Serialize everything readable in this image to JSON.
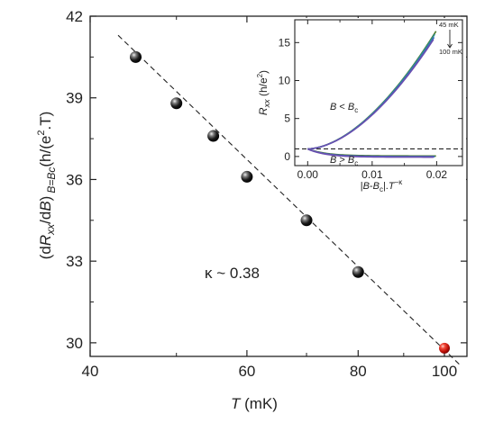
{
  "chart_data": [
    {
      "type": "scatter",
      "xlabel_var": "T",
      "xlabel_unit": " (mK)",
      "ylabel": "(dRxx/dB) B=Bc(h/(e².T)",
      "ylabel_parts": {
        "open": "(d",
        "r": "R",
        "xx": "xx",
        "mid": "/d",
        "b": "B",
        "close": ")",
        "sub": "B=Bc",
        "unit_a": "(h/(e",
        "sup": "2",
        "unit_b": ".T)"
      },
      "x_scale": "log",
      "xlim": [
        40,
        106
      ],
      "ylim": [
        29.5,
        42
      ],
      "x_ticks": [
        40,
        60,
        80,
        100
      ],
      "y_ticks": [
        30,
        33,
        36,
        39,
        42
      ],
      "points": [
        {
          "x": 45,
          "y": 40.5,
          "color": "#1a1a1a"
        },
        {
          "x": 50,
          "y": 38.8,
          "color": "#1a1a1a"
        },
        {
          "x": 55,
          "y": 37.6,
          "color": "#1a1a1a"
        },
        {
          "x": 60,
          "y": 36.1,
          "color": "#1a1a1a"
        },
        {
          "x": 70,
          "y": 34.5,
          "color": "#1a1a1a"
        },
        {
          "x": 80,
          "y": 32.6,
          "color": "#1a1a1a"
        },
        {
          "x": 100,
          "y": 29.8,
          "color": "#d4140f"
        }
      ],
      "fit_line": {
        "x": [
          43,
          104
        ],
        "y": [
          41.3,
          29.2
        ]
      },
      "annotation": "κ ~ 0.38"
    },
    {
      "type": "line",
      "xlabel": "|B-Bc|.T−κ",
      "xlabel_parts": {
        "a": "|",
        "b1": "B",
        "c": "-",
        "b2": "B",
        "sub": "c",
        "d": "|.",
        "t": "T",
        "sup": "−κ"
      },
      "ylabel": "Rxx (h/e²)",
      "ylabel_parts": {
        "r": "R",
        "sub": "xx",
        "a": " (h/e",
        "sup": "2",
        "b": ")"
      },
      "xlim": [
        -0.002,
        0.024
      ],
      "ylim": [
        -1.2,
        18
      ],
      "x_ticks": [
        0.0,
        0.01,
        0.02
      ],
      "y_ticks": [
        0,
        5,
        10,
        15
      ],
      "dashed_level": 1,
      "curves_above": [
        {
          "color": "#4a7a2a",
          "x_end": 0.0199,
          "y_end": 16.5
        },
        {
          "color": "#2f8f8c",
          "x_end": 0.0197,
          "y_end": 16.1
        },
        {
          "color": "#3a6abf",
          "x_end": 0.0196,
          "y_end": 15.7
        },
        {
          "color": "#6a4fb0",
          "x_end": 0.0195,
          "y_end": 15.4
        }
      ],
      "curves_below": [
        {
          "color": "#4a7a2a",
          "x_end": 0.0199,
          "y_end": 0.06
        },
        {
          "color": "#3a6abf",
          "x_end": 0.0197,
          "y_end": -0.02
        },
        {
          "color": "#6a4fb0",
          "x_end": 0.0195,
          "y_end": -0.08
        }
      ],
      "labels": {
        "above": "B < Bc",
        "above_parts": {
          "v": "B",
          "op": " < ",
          "v2": "B",
          "sub": "c"
        },
        "below": "B > Bc",
        "below_parts": {
          "v": "B",
          "op": " > ",
          "v2": "B",
          "sub": "c"
        },
        "temp_high": "45 mK",
        "temp_low": "100 mK"
      }
    }
  ]
}
